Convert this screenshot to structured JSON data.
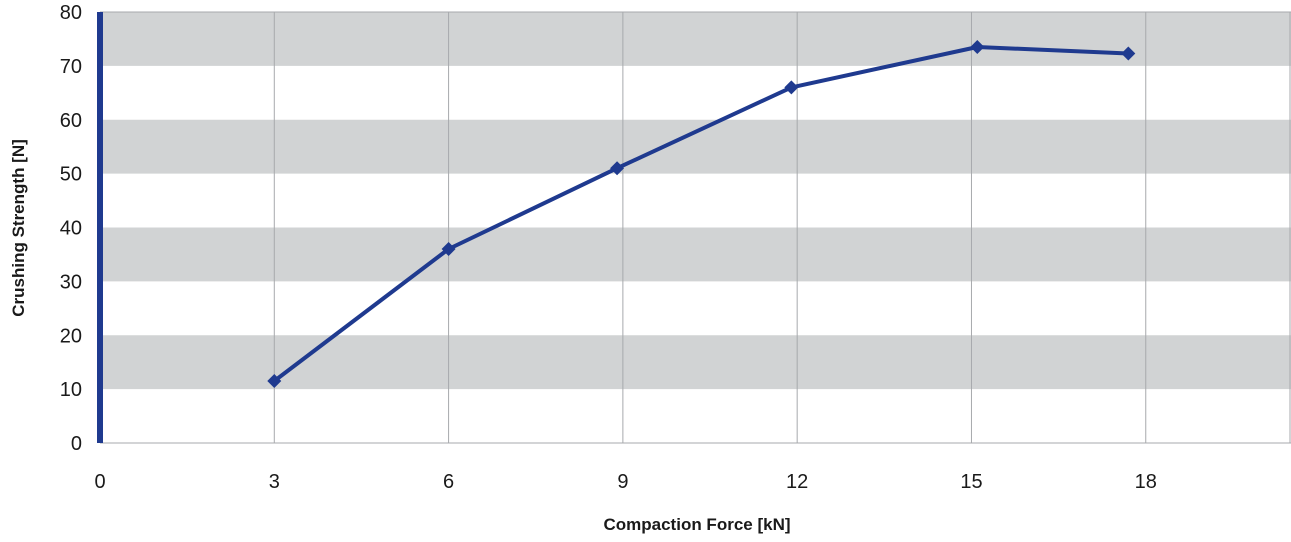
{
  "chart_data": {
    "type": "line",
    "title": "",
    "xlabel": "Compaction Force [kN]",
    "ylabel": "Crushing Strength [N]",
    "xlim": [
      0,
      20.5
    ],
    "ylim": [
      0,
      80
    ],
    "x_ticks": [
      "0",
      "3",
      "6",
      "9",
      "12",
      "15",
      "18"
    ],
    "y_ticks": [
      "0",
      "10",
      "20",
      "30",
      "40",
      "50",
      "60",
      "70",
      "80"
    ],
    "grid": true,
    "band_color": "#d1d3d4",
    "grid_color": "#a7a9ac",
    "series_color": "#1f3a8f",
    "axis_color": "#1f3a8f",
    "series": [
      {
        "x": [
          3.0,
          6.0,
          8.9,
          11.9,
          15.1,
          17.7
        ],
        "y": [
          11.5,
          36,
          51,
          66,
          73.5,
          72.3
        ]
      }
    ]
  }
}
